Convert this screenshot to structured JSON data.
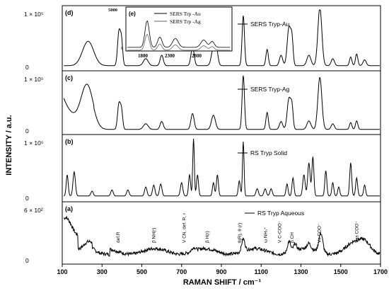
{
  "chart_data": {
    "type": "line",
    "xlabel": "RAMAN SHIFT / cm⁻¹",
    "ylabel": "INTENSITY / a.u.",
    "xlim": [
      100,
      1700
    ],
    "xticks": [
      "100",
      "300",
      "500",
      "700",
      "900",
      "1100",
      "1300",
      "1500",
      "1700"
    ],
    "panels": [
      {
        "letter": "(d)",
        "ymax_label": "1 × 10⁵",
        "zero_label": "0",
        "series_name": "SERS Tryp-Au",
        "peaks": [
          [
            230,
            0.42,
            28
          ],
          [
            385,
            0.58,
            7
          ],
          [
            398,
            0.42,
            6
          ],
          [
            520,
            0.12,
            12
          ],
          [
            600,
            0.18,
            8
          ],
          [
            755,
            0.32,
            8
          ],
          [
            860,
            0.3,
            10
          ],
          [
            875,
            0.25,
            8
          ],
          [
            1010,
            0.86,
            6
          ],
          [
            1130,
            0.28,
            6
          ],
          [
            1200,
            0.18,
            8
          ],
          [
            1240,
            0.66,
            9
          ],
          [
            1255,
            0.4,
            6
          ],
          [
            1340,
            0.18,
            10
          ],
          [
            1395,
            1.0,
            10
          ],
          [
            1460,
            0.12,
            8
          ],
          [
            1550,
            0.15,
            6
          ],
          [
            1580,
            0.2,
            6
          ],
          [
            1620,
            0.1,
            8
          ]
        ],
        "baseline": 0.04,
        "inset": {
          "xticks": [
            "1800",
            "2300",
            "2800"
          ],
          "ymax_label": "5000",
          "zero_label": "0",
          "legend_label": "(e)",
          "legend": [
            "SERS Trp -Au",
            "SERS Trp -Ag"
          ]
        }
      },
      {
        "letter": "(c)",
        "ymax_label": "1 × 10⁵",
        "zero_label": "0",
        "series_name": "SERS Tryp-Ag",
        "peaks": [
          [
            225,
            0.72,
            30
          ],
          [
            385,
            0.45,
            7
          ],
          [
            398,
            0.32,
            6
          ],
          [
            520,
            0.1,
            12
          ],
          [
            600,
            0.14,
            8
          ],
          [
            755,
            0.28,
            8
          ],
          [
            860,
            0.25,
            10
          ],
          [
            1010,
            0.95,
            6
          ],
          [
            1130,
            0.3,
            6
          ],
          [
            1200,
            0.14,
            8
          ],
          [
            1240,
            0.55,
            9
          ],
          [
            1255,
            0.35,
            6
          ],
          [
            1340,
            0.15,
            10
          ],
          [
            1395,
            0.92,
            10
          ],
          [
            1460,
            0.1,
            8
          ],
          [
            1550,
            0.12,
            6
          ],
          [
            1580,
            0.15,
            6
          ]
        ],
        "baseline": 0.04,
        "lowshift": true
      },
      {
        "letter": "(b)",
        "ymax_label": "1 × 10⁵",
        "zero_label": "0",
        "series_name": "RS Tryp Solid",
        "peaks": [
          [
            125,
            0.35,
            5
          ],
          [
            160,
            0.4,
            6
          ],
          [
            250,
            0.08,
            6
          ],
          [
            350,
            0.1,
            6
          ],
          [
            430,
            0.1,
            6
          ],
          [
            520,
            0.15,
            6
          ],
          [
            560,
            0.18,
            6
          ],
          [
            595,
            0.2,
            6
          ],
          [
            700,
            0.22,
            6
          ],
          [
            740,
            0.35,
            5
          ],
          [
            760,
            0.95,
            4
          ],
          [
            780,
            0.35,
            5
          ],
          [
            860,
            0.22,
            5
          ],
          [
            880,
            0.35,
            5
          ],
          [
            990,
            0.25,
            5
          ],
          [
            1010,
            0.9,
            4
          ],
          [
            1080,
            0.12,
            6
          ],
          [
            1120,
            0.12,
            6
          ],
          [
            1150,
            0.12,
            6
          ],
          [
            1230,
            0.2,
            5
          ],
          [
            1260,
            0.3,
            5
          ],
          [
            1315,
            0.35,
            6
          ],
          [
            1340,
            0.55,
            6
          ],
          [
            1360,
            0.65,
            5
          ],
          [
            1425,
            0.42,
            5
          ],
          [
            1460,
            0.22,
            5
          ],
          [
            1490,
            0.15,
            5
          ],
          [
            1550,
            0.55,
            5
          ],
          [
            1580,
            0.3,
            5
          ],
          [
            1620,
            0.18,
            5
          ]
        ],
        "baseline": 0.05
      },
      {
        "letter": "(a)",
        "ymax_label": "6 × 10²",
        "zero_label": "0",
        "series_name": "RS Tryp  Aqueous",
        "peaks": [
          [
            120,
            0.35,
            30
          ],
          [
            230,
            0.2,
            30
          ],
          [
            760,
            0.06,
            10
          ],
          [
            1010,
            0.22,
            8
          ],
          [
            1240,
            0.2,
            8
          ],
          [
            1270,
            0.12,
            8
          ],
          [
            1340,
            0.1,
            10
          ],
          [
            1400,
            0.35,
            10
          ],
          [
            1560,
            0.1,
            30
          ],
          [
            1620,
            0.18,
            30
          ]
        ],
        "baseline": 0.18,
        "noisy": true,
        "annotations": [
          "def.R",
          "β NH(r)",
          "V CN, def. R, r",
          "β H(r)",
          "θ(R), θ (r)",
          "ω NH₃⁺",
          "V C-COO⁻",
          "β CH",
          "Vs COO⁻",
          "Vas COO⁻"
        ]
      }
    ]
  }
}
